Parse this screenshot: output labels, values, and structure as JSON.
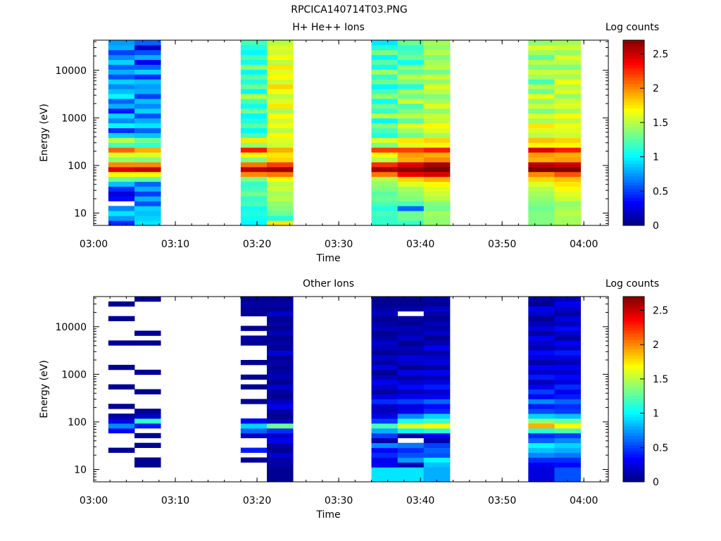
{
  "file_title": "RPCICA140714T03.PNG",
  "chart_data": [
    {
      "type": "heatmap",
      "title": "H+ He++ Ions",
      "xlabel": "Time",
      "ylabel": "Energy (eV)",
      "yscale": "log",
      "xlim": [
        "03:00",
        "04:03"
      ],
      "ylim": [
        5.5,
        43000
      ],
      "x_ticks": [
        "03:00",
        "03:10",
        "03:20",
        "03:30",
        "03:40",
        "03:50",
        "04:00"
      ],
      "y_ticks": [
        "10",
        "100",
        "1000",
        "10000"
      ],
      "colorbar": {
        "label": "Log counts",
        "range": [
          0,
          2.7
        ],
        "ticks": [
          "0",
          "0.5",
          "1",
          "1.5",
          "2",
          "2.5"
        ]
      },
      "columns": [
        {
          "start": "03:01.8",
          "end": "03:05.0",
          "levels": [
            0.45,
            0.75,
            0.95,
            0.7,
            null,
            0.35,
            0.25,
            0.45,
            0.85,
            1.3,
            1.7,
            2.45,
            2.0,
            1.4,
            1.6,
            2.1,
            1.2,
            1.5,
            0.9,
            0.45,
            1.0,
            0.7,
            0.9,
            0.4,
            0.8,
            0.6,
            1.0,
            0.85,
            0.7,
            0.9,
            0.55,
            0.8,
            0.6,
            0.9,
            0.7,
            0.5,
            0.8,
            0.75
          ]
        },
        {
          "start": "03:05.0",
          "end": "03:08.2",
          "levels": [
            0.95,
            0.9,
            0.85,
            0.9,
            0.55,
            0.8,
            0.5,
            0.8,
            0.6,
            1.25,
            1.7,
            2.5,
            2.0,
            1.35,
            1.6,
            1.9,
            1.15,
            1.3,
            0.85,
            0.6,
            0.95,
            0.8,
            0.55,
            0.9,
            0.7,
            0.85,
            0.5,
            0.8,
            0.75,
            0.85,
            0.45,
            0.9,
            0.6,
            0.3,
            0.8,
            0.55,
            0.2,
            0.6
          ]
        },
        {
          "start": "03:18.0",
          "end": "03:21.2",
          "levels": [
            1.0,
            1.05,
            1.1,
            1.05,
            1.2,
            1.15,
            1.3,
            1.2,
            1.15,
            1.35,
            2.0,
            2.55,
            2.05,
            1.35,
            1.7,
            2.3,
            1.4,
            1.75,
            1.2,
            1.0,
            1.25,
            1.1,
            1.0,
            1.3,
            1.05,
            1.2,
            1.5,
            1.0,
            1.3,
            1.1,
            1.25,
            1.0,
            1.4,
            1.05,
            1.2,
            1.0,
            1.1,
            1.2
          ]
        },
        {
          "start": "03:21.2",
          "end": "03:24.4",
          "levels": [
            1.75,
            1.1,
            1.3,
            1.35,
            1.4,
            1.5,
            1.45,
            1.55,
            1.5,
            1.7,
            2.05,
            2.6,
            2.2,
            1.8,
            1.75,
            1.9,
            1.55,
            1.6,
            1.7,
            1.5,
            1.65,
            1.55,
            1.7,
            1.45,
            1.75,
            1.6,
            1.5,
            1.65,
            1.8,
            1.55,
            1.7,
            1.6,
            1.75,
            1.5,
            1.65,
            1.55,
            1.6,
            1.5
          ]
        },
        {
          "start": "03:34.0",
          "end": "03:37.2",
          "levels": [
            1.15,
            1.15,
            1.2,
            1.1,
            1.2,
            1.3,
            1.25,
            1.35,
            1.4,
            1.5,
            2.05,
            2.6,
            2.25,
            1.5,
            1.7,
            2.2,
            1.35,
            1.6,
            1.1,
            1.2,
            1.35,
            1.0,
            1.5,
            1.15,
            1.3,
            1.05,
            1.4,
            1.2,
            1.0,
            1.3,
            1.15,
            1.45,
            1.05,
            1.25,
            1.0,
            1.35,
            1.1,
            0.95
          ]
        },
        {
          "start": "03:37.2",
          "end": "03:40.4",
          "levels": [
            1.15,
            1.3,
            1.3,
            0.6,
            1.2,
            1.35,
            1.4,
            1.45,
            1.6,
            1.8,
            2.4,
            2.65,
            2.45,
            1.9,
            1.95,
            2.2,
            1.6,
            1.75,
            1.3,
            1.45,
            1.6,
            1.25,
            1.5,
            1.35,
            1.2,
            1.55,
            1.3,
            1.45,
            1.1,
            1.35,
            1.5,
            1.25,
            1.4,
            1.05,
            1.3,
            1.2,
            1.15,
            1.3
          ]
        },
        {
          "start": "03:40.4",
          "end": "03:43.6",
          "levels": [
            1.4,
            1.4,
            1.45,
            1.3,
            1.35,
            1.5,
            1.55,
            1.6,
            1.7,
            1.9,
            2.45,
            2.7,
            2.6,
            2.0,
            1.9,
            2.3,
            1.65,
            1.8,
            1.45,
            1.6,
            1.7,
            1.5,
            1.55,
            1.4,
            1.6,
            1.45,
            1.35,
            1.5,
            1.6,
            1.4,
            1.55,
            1.3,
            1.5,
            1.45,
            1.35,
            1.5,
            1.4,
            1.45
          ]
        },
        {
          "start": "03:53.2",
          "end": "03:56.4",
          "levels": [
            1.35,
            1.35,
            1.35,
            1.3,
            1.35,
            1.4,
            1.45,
            1.5,
            1.6,
            1.8,
            2.0,
            2.7,
            2.55,
            1.9,
            1.95,
            2.45,
            1.7,
            1.85,
            1.5,
            1.6,
            1.75,
            1.45,
            1.6,
            1.35,
            1.55,
            1.4,
            1.65,
            1.3,
            1.5,
            1.2,
            1.45,
            1.55,
            1.35,
            1.5,
            1.25,
            1.45,
            1.6,
            1.4
          ]
        },
        {
          "start": "03:56.4",
          "end": "03:59.6",
          "levels": [
            1.45,
            1.45,
            1.5,
            1.45,
            1.4,
            1.55,
            1.6,
            1.7,
            1.75,
            1.85,
            2.15,
            2.7,
            2.5,
            1.95,
            1.9,
            2.3,
            1.7,
            1.8,
            1.55,
            1.6,
            1.65,
            1.5,
            1.7,
            1.45,
            1.6,
            1.55,
            1.4,
            1.6,
            1.5,
            1.65,
            1.45,
            1.55,
            1.35,
            1.5,
            1.6,
            1.4,
            1.55,
            1.45
          ]
        }
      ]
    },
    {
      "type": "heatmap",
      "title": "Other Ions",
      "xlabel": "Time",
      "ylabel": "Energy (eV)",
      "yscale": "log",
      "xlim": [
        "03:00",
        "04:03"
      ],
      "ylim": [
        5.5,
        43000
      ],
      "x_ticks": [
        "03:00",
        "03:10",
        "03:20",
        "03:30",
        "03:40",
        "03:50",
        "04:00"
      ],
      "y_ticks": [
        "10",
        "100",
        "1000",
        "10000"
      ],
      "colorbar": {
        "label": "Log counts",
        "range": [
          0,
          2.7
        ],
        "ticks": [
          "0",
          "0.5",
          "1",
          "1.5",
          "2",
          "2.5"
        ]
      },
      "columns": [
        {
          "start": "03:01.8",
          "end": "03:05.0",
          "levels": [
            null,
            null,
            null,
            null,
            null,
            null,
            0.05,
            null,
            null,
            null,
            0.3,
            0.7,
            0.25,
            0.1,
            null,
            0.05,
            null,
            null,
            null,
            0.05,
            null,
            null,
            null,
            0.05,
            null,
            null,
            null,
            null,
            0.05,
            null,
            null,
            null,
            null,
            0.05,
            null,
            null,
            0.05,
            null
          ]
        },
        {
          "start": "03:05.0",
          "end": "03:08.2",
          "levels": [
            null,
            null,
            null,
            0.05,
            0.05,
            null,
            null,
            0.05,
            null,
            0.05,
            null,
            0.4,
            1.15,
            0.2,
            0.05,
            null,
            null,
            null,
            0.05,
            null,
            null,
            null,
            0.05,
            null,
            null,
            null,
            null,
            null,
            0.05,
            null,
            0.05,
            null,
            null,
            null,
            null,
            null,
            null,
            0.05
          ]
        },
        {
          "start": "03:18.0",
          "end": "03:21.2",
          "levels": [
            null,
            null,
            null,
            null,
            0.05,
            null,
            0.4,
            null,
            null,
            0.2,
            0.6,
            0.9,
            0.3,
            null,
            null,
            null,
            0.05,
            null,
            null,
            0.05,
            null,
            0.05,
            null,
            null,
            0.05,
            null,
            null,
            null,
            0.05,
            0.1,
            null,
            0.05,
            null,
            null,
            0.05,
            0.05,
            0.1,
            0.05
          ]
        },
        {
          "start": "03:21.2",
          "end": "03:24.4",
          "levels": [
            0.05,
            0.05,
            0.05,
            0.1,
            0.1,
            0.2,
            0.05,
            0.1,
            0.3,
            0.2,
            0.45,
            1.3,
            0.15,
            0.05,
            0.1,
            0.3,
            0.15,
            0.05,
            0.1,
            0.2,
            0.05,
            0.15,
            0.1,
            0.05,
            0.1,
            0.05,
            0.25,
            0.05,
            0.1,
            0.05,
            0.15,
            0.05,
            0.1,
            0.05,
            0.2,
            0.05,
            0.1,
            0.05
          ]
        },
        {
          "start": "03:34.0",
          "end": "03:37.2",
          "levels": [
            0.95,
            0.95,
            0.95,
            0.3,
            0.3,
            0.45,
            0.35,
            0.7,
            0.1,
            0.5,
            0.8,
            1.2,
            0.5,
            0.3,
            0.15,
            0.2,
            0.45,
            0.25,
            0.1,
            0.2,
            0.3,
            0.15,
            0.05,
            0.25,
            0.1,
            0.2,
            0.05,
            0.15,
            0.2,
            0.1,
            0.05,
            0.15,
            0.1,
            0.05,
            0.15,
            0.1,
            0.05,
            0.05
          ]
        },
        {
          "start": "03:37.2",
          "end": "03:40.4",
          "levels": [
            0.95,
            0.95,
            0.95,
            0.15,
            0.75,
            0.55,
            0.45,
            0.65,
            null,
            0.1,
            1.0,
            1.6,
            1.1,
            0.7,
            0.3,
            0.25,
            0.5,
            0.3,
            0.15,
            0.35,
            0.2,
            0.1,
            0.3,
            0.05,
            0.2,
            0.25,
            0.1,
            0.15,
            0.05,
            0.2,
            0.1,
            0.15,
            0.05,
            0.1,
            null,
            0.1,
            0.05,
            0.05
          ]
        },
        {
          "start": "03:40.4",
          "end": "03:43.6",
          "levels": [
            0.8,
            0.8,
            0.8,
            0.85,
            1.0,
            0.55,
            0.6,
            0.5,
            0.1,
            0.3,
            1.1,
            1.7,
            1.2,
            0.9,
            0.45,
            0.35,
            0.6,
            0.3,
            0.2,
            0.4,
            0.25,
            0.15,
            0.3,
            0.1,
            0.25,
            0.2,
            0.1,
            0.3,
            0.15,
            0.05,
            0.2,
            0.1,
            0.15,
            0.05,
            0.1,
            0.2,
            0.05,
            0.1
          ]
        },
        {
          "start": "03:53.2",
          "end": "03:56.4",
          "levels": [
            0.25,
            0.25,
            0.25,
            0.3,
            0.45,
            0.7,
            0.85,
            1.0,
            0.6,
            0.45,
            1.1,
            1.9,
            1.4,
            0.9,
            0.55,
            0.4,
            0.7,
            0.35,
            0.5,
            0.3,
            0.15,
            0.4,
            0.2,
            0.3,
            0.1,
            0.25,
            0.35,
            0.15,
            0.2,
            0.3,
            0.1,
            0.25,
            0.15,
            0.05,
            0.2,
            0.3,
            0.05,
            0.1
          ]
        },
        {
          "start": "03:56.4",
          "end": "03:59.6",
          "levels": [
            0.55,
            0.55,
            0.55,
            0.35,
            0.45,
            0.65,
            0.8,
            0.9,
            0.7,
            0.5,
            1.2,
            1.7,
            1.3,
            0.85,
            0.5,
            0.45,
            0.6,
            0.4,
            0.3,
            0.45,
            0.25,
            0.35,
            0.2,
            0.3,
            0.15,
            0.25,
            0.4,
            0.2,
            0.3,
            0.1,
            0.2,
            0.35,
            0.15,
            0.25,
            0.1,
            0.2,
            0.3,
            0.15
          ]
        }
      ]
    }
  ]
}
